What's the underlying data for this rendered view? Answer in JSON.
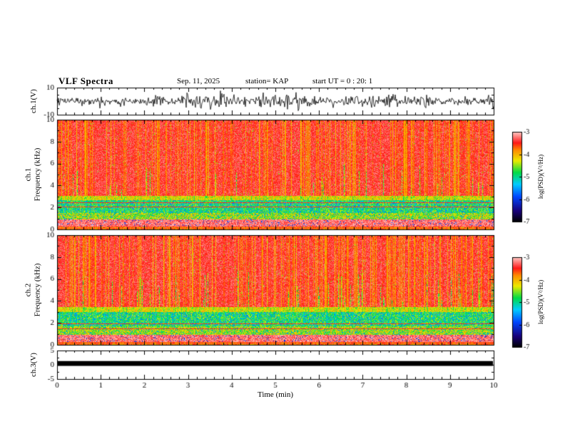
{
  "header": {
    "title": "VLF Spectra",
    "date": "Sep. 11, 2025",
    "station": "station= KAP",
    "start_ut": "start UT =  0 : 20: 1"
  },
  "axes": {
    "xlabel": "Time (min)",
    "xlim": [
      0,
      10
    ],
    "xticks": [
      0,
      1,
      2,
      3,
      4,
      5,
      6,
      7,
      8,
      9,
      10
    ]
  },
  "colorbar": {
    "label": "log(PSD)(V²/Hz)",
    "ticks": [
      -3,
      -4,
      -5,
      -6,
      -7
    ],
    "max": -3,
    "min": -7,
    "color_scale": [
      "#000000",
      "#190078",
      "#0046ff",
      "#00cdff",
      "#00dc46",
      "#ebeb00",
      "#ff8c00",
      "#ff1919",
      "#ffc8c3"
    ]
  },
  "chart_data": [
    {
      "type": "line",
      "name": "ch1 waveform",
      "ylabel": "ch.1(V)",
      "ylim": [
        -10,
        10
      ],
      "yticks": [
        10,
        -10
      ],
      "minor_yticks": [
        5,
        0,
        -5
      ],
      "description": "dense black broadband noise waveform filling roughly ±8 V over the full 0–10 min record",
      "render": {
        "seed": 11,
        "amplitude_v": 3.2
      }
    },
    {
      "type": "heatmap",
      "name": "ch1 spectrogram",
      "ylabel_line1": "ch.1",
      "ylabel_line2": "Frequency (kHz)",
      "ylim": [
        0,
        10
      ],
      "yticks": [
        0,
        2,
        4,
        6,
        8,
        10
      ],
      "value_scale": "log PSD from -7 (dark blue/black) to -3 (pale red)",
      "description": "saturated red (PSD ~ -3.5) above ~3 kHz with darker vertical streaks; mottled green/yellow band 1.6–3.1 kHz; yellow-green 1–1.6 kHz; pale pink band 0.3–0.95 kHz with dark speckles; thin red horizontal lines near 2.1 and 2.45 kHz",
      "render": {
        "seed": 7,
        "red_above_khz": 3.1,
        "yellow_top_khz": 2.7,
        "green_bottom_khz": 1.55,
        "lower_band_bottom_khz": 0.95,
        "pale_band_bottom_khz": 0.32,
        "line_khz": [
          2.08,
          2.45
        ]
      }
    },
    {
      "type": "heatmap",
      "name": "ch2 spectrogram",
      "ylabel_line1": "ch.2",
      "ylabel_line2": "Frequency (kHz)",
      "ylim": [
        0,
        10
      ],
      "yticks": [
        0,
        2,
        4,
        6,
        8,
        10
      ],
      "value_scale": "log PSD from -7 (dark blue/black) to -3 (pale red)",
      "description": "saturated red above ~3.5 kHz with darker vertical streaks; green/cyan mottled band 1.7–3.5 kHz; pale pink band 0.3–0.95 kHz with dark speckles; thin red lines near 1.5 and 1.95 kHz",
      "render": {
        "seed": 23,
        "red_above_khz": 3.5,
        "yellow_top_khz": 3.0,
        "green_bottom_khz": 1.7,
        "lower_band_bottom_khz": 0.95,
        "pale_band_bottom_khz": 0.3,
        "line_khz": [
          1.95,
          1.5
        ]
      }
    },
    {
      "type": "line",
      "name": "ch3",
      "ylabel": "ch.3(V)",
      "ylim": [
        -5,
        5
      ],
      "yticks": [
        5,
        0,
        -5
      ],
      "description": "constant thick black band from about -0.4 V to +1.3 V across the full record",
      "render": {
        "band_v": [
          1.3,
          -0.4
        ]
      }
    }
  ]
}
